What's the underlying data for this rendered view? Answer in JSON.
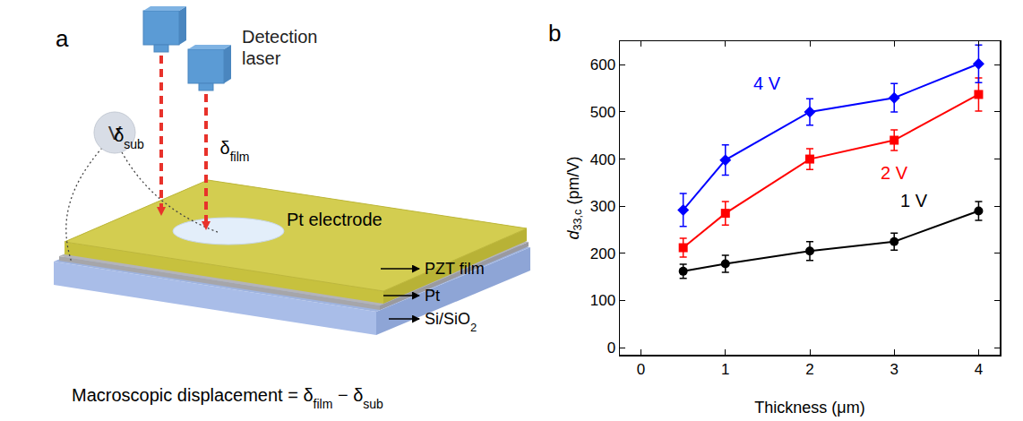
{
  "diagram": {
    "panel_label": "a",
    "detector_label": "Detection laser",
    "voltage_label": "V",
    "beams": [
      [
        {
          "t": "δ"
        },
        {
          "t": "sub",
          "sub": true
        }
      ],
      [
        {
          "t": "δ"
        },
        {
          "t": "film",
          "sub": true
        }
      ]
    ],
    "layers": [
      [
        {
          "t": "Pt electrode"
        }
      ],
      [
        {
          "t": "PZT film"
        }
      ],
      [
        {
          "t": "Pt"
        }
      ],
      [
        {
          "t": "Si/SiO"
        },
        {
          "t": "2",
          "sub": true
        }
      ]
    ],
    "formula": [
      {
        "t": "Macroscopic displacement = δ"
      },
      {
        "t": "film",
        "sub": true
      },
      {
        "t": " − δ"
      },
      {
        "t": "sub",
        "sub": true
      }
    ]
  },
  "chart_data": {
    "type": "line",
    "panel_label": "b",
    "xlabel": "Thickness (μm)",
    "ylabel": [
      {
        "t": "d",
        "italic": true
      },
      {
        "t": "33,c",
        "sub": true
      },
      {
        "t": " (pm/V)"
      }
    ],
    "x": [
      0.5,
      1,
      2,
      3,
      4
    ],
    "series": [
      {
        "name": "1 V",
        "color": "#000000",
        "marker": "circle",
        "values": [
          162,
          178,
          205,
          225,
          290
        ],
        "errors": [
          15,
          18,
          20,
          18,
          20
        ]
      },
      {
        "name": "2 V",
        "color": "#ff0000",
        "marker": "square",
        "values": [
          212,
          285,
          400,
          440,
          537
        ],
        "errors": [
          20,
          25,
          22,
          22,
          35
        ]
      },
      {
        "name": "4 V",
        "color": "#0000ff",
        "marker": "diamond",
        "values": [
          292,
          398,
          500,
          530,
          602
        ],
        "errors": [
          35,
          32,
          28,
          30,
          40
        ]
      }
    ],
    "xlim": [
      -0.25,
      4.25
    ],
    "ylim": [
      -15,
      650
    ],
    "xticks": [
      0,
      1,
      2,
      3,
      4
    ],
    "yticks": [
      0,
      100,
      200,
      300,
      400,
      500,
      600
    ],
    "grid": false
  }
}
